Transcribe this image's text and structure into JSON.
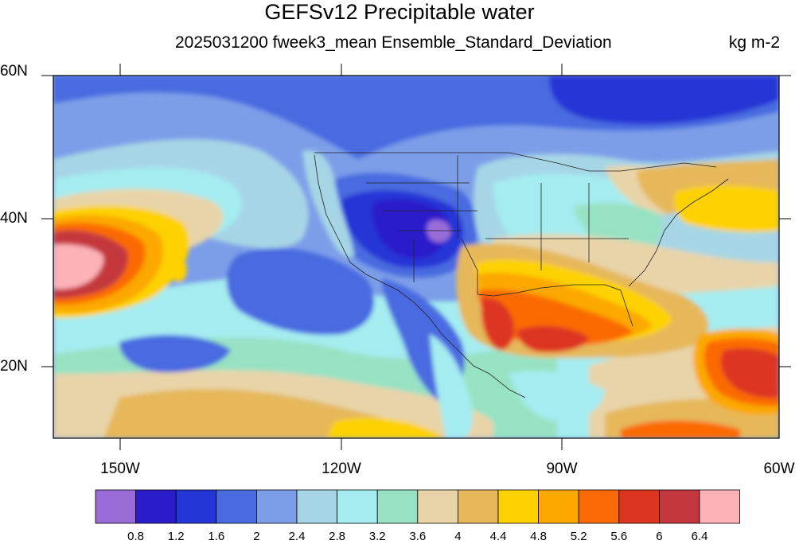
{
  "header": {
    "title": "GEFSv12 Precipitable water",
    "subtitle": "2025031200 fweek3_mean Ensemble_Standard_Deviation",
    "units": "kg m-2"
  },
  "map": {
    "lat_range": [
      10,
      60
    ],
    "lon_range": [
      -160,
      -60
    ],
    "lat_ticks": [
      "60N",
      "40N",
      "20N"
    ],
    "lon_ticks": [
      "150W",
      "120W",
      "90W",
      "60W"
    ]
  },
  "colorbar": {
    "levels": [
      "0.8",
      "1.2",
      "1.6",
      "2",
      "2.4",
      "2.8",
      "3.2",
      "3.6",
      "4",
      "4.4",
      "4.8",
      "5.2",
      "5.6",
      "6",
      "6.4"
    ],
    "colors": [
      "#9a6cd8",
      "#2b1ccb",
      "#2536d6",
      "#4a6be0",
      "#7c9ee8",
      "#a6d6e6",
      "#a4ecf0",
      "#98e2c4",
      "#e8d4a8",
      "#e6b85a",
      "#fdd200",
      "#fca800",
      "#fb6a06",
      "#dd3420",
      "#c4373e",
      "#fdb2b8"
    ]
  }
}
